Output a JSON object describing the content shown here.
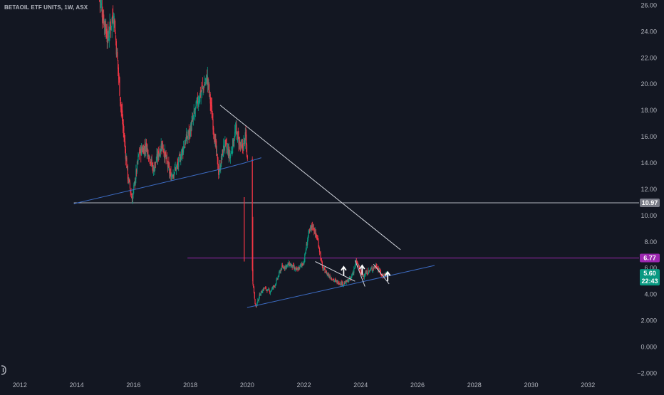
{
  "header": {
    "symbol": "BETAOIL ETF UNITS, 1W, ASX"
  },
  "colors": {
    "background": "#131722",
    "up": "#089981",
    "down": "#f23645",
    "axis_text": "#b2b5be",
    "trendline_white": "#d1d4dc",
    "trendline_blue": "#3d6cc4",
    "level_purple": "#9c27b0",
    "level_gray": "#b2b5be",
    "price_badge": "#089981"
  },
  "icons": {
    "logo": "tradingview-logo-icon",
    "signal": "up-arrow-icon"
  },
  "price_badges": {
    "support_level": "10.97",
    "resistance_level": "6.77",
    "last_price": "5.60",
    "countdown": "22:43"
  },
  "chart_data": {
    "type": "candlestick",
    "title": "BETAOIL ETF UNITS, 1W, ASX",
    "interval": "1W",
    "xlim": [
      2011.3,
      2033.8
    ],
    "ylim": [
      -2.3,
      26.4
    ],
    "x_ticks": [
      "2012",
      "2014",
      "2016",
      "2018",
      "2020",
      "2022",
      "2024",
      "2026",
      "2028",
      "2030",
      "2032"
    ],
    "y_ticks": [
      "26.00",
      "24.00",
      "22.00",
      "20.00",
      "18.00",
      "16.00",
      "14.00",
      "12.00",
      "10.00",
      "8.00",
      "6.00",
      "4.00",
      "2.000",
      "0.000",
      "−2.000"
    ],
    "price_path": [
      [
        2014.8,
        26.5
      ],
      [
        2015.1,
        23.5
      ],
      [
        2015.3,
        25.5
      ],
      [
        2015.55,
        18.5
      ],
      [
        2015.8,
        13.0
      ],
      [
        2015.95,
        11.2
      ],
      [
        2016.2,
        14.8
      ],
      [
        2016.45,
        15.3
      ],
      [
        2016.7,
        13.5
      ],
      [
        2017.0,
        15.5
      ],
      [
        2017.3,
        13.0
      ],
      [
        2017.55,
        13.8
      ],
      [
        2017.8,
        15.5
      ],
      [
        2018.0,
        16.5
      ],
      [
        2018.3,
        19.0
      ],
      [
        2018.6,
        20.5
      ],
      [
        2018.8,
        17.0
      ],
      [
        2019.0,
        13.2
      ],
      [
        2019.2,
        15.5
      ],
      [
        2019.4,
        14.5
      ],
      [
        2019.6,
        16.5
      ],
      [
        2019.8,
        15.0
      ],
      [
        2019.95,
        16.0
      ],
      [
        2020.1,
        11.5
      ],
      [
        2020.2,
        5.0
      ],
      [
        2020.3,
        3.0
      ],
      [
        2020.45,
        4.0
      ],
      [
        2020.6,
        4.5
      ],
      [
        2020.8,
        4.2
      ],
      [
        2021.0,
        4.8
      ],
      [
        2021.2,
        6.0
      ],
      [
        2021.5,
        6.3
      ],
      [
        2021.75,
        5.8
      ],
      [
        2022.0,
        6.5
      ],
      [
        2022.15,
        8.5
      ],
      [
        2022.3,
        9.3
      ],
      [
        2022.5,
        8.0
      ],
      [
        2022.65,
        6.0
      ],
      [
        2022.85,
        5.5
      ],
      [
        2023.1,
        5.0
      ],
      [
        2023.4,
        4.8
      ],
      [
        2023.65,
        5.2
      ],
      [
        2023.85,
        6.5
      ],
      [
        2024.05,
        5.4
      ],
      [
        2024.3,
        5.8
      ],
      [
        2024.55,
        6.2
      ],
      [
        2024.75,
        5.4
      ],
      [
        2024.92,
        5.6
      ]
    ],
    "gap_points": [
      [
        2019.9,
        11.0
      ],
      [
        2020.2,
        9.5
      ]
    ],
    "horizontal_levels": [
      {
        "y": 10.97,
        "x_start": 2013.9,
        "color": "#b2b5be"
      },
      {
        "y": 6.77,
        "x_start": 2017.9,
        "color": "#9c27b0"
      }
    ],
    "trendlines": [
      {
        "points": [
          [
            2013.9,
            10.9
          ],
          [
            2019.2,
            13.6
          ],
          [
            2019.9,
            14.0
          ],
          [
            2020.5,
            14.4
          ]
        ],
        "color": "#3d6cc4"
      },
      {
        "points": [
          [
            2019.05,
            18.4
          ],
          [
            2025.4,
            7.4
          ]
        ],
        "color": "#d1d4dc"
      },
      {
        "points": [
          [
            2020.0,
            3.0
          ],
          [
            2026.6,
            6.2
          ]
        ],
        "color": "#3d6cc4"
      },
      {
        "points": [
          [
            2022.4,
            6.5
          ],
          [
            2023.8,
            5.0
          ]
        ],
        "color": "#d1d4dc"
      },
      {
        "points": [
          [
            2023.8,
            6.6
          ],
          [
            2024.15,
            4.6
          ]
        ],
        "color": "#d1d4dc"
      },
      {
        "points": [
          [
            2024.45,
            6.3
          ],
          [
            2025.0,
            4.8
          ]
        ],
        "color": "#d1d4dc"
      }
    ],
    "signal_arrows": [
      [
        2023.4,
        5.4
      ],
      [
        2024.05,
        5.5
      ],
      [
        2024.95,
        5.0
      ]
    ],
    "grid": false,
    "legend": "none"
  }
}
